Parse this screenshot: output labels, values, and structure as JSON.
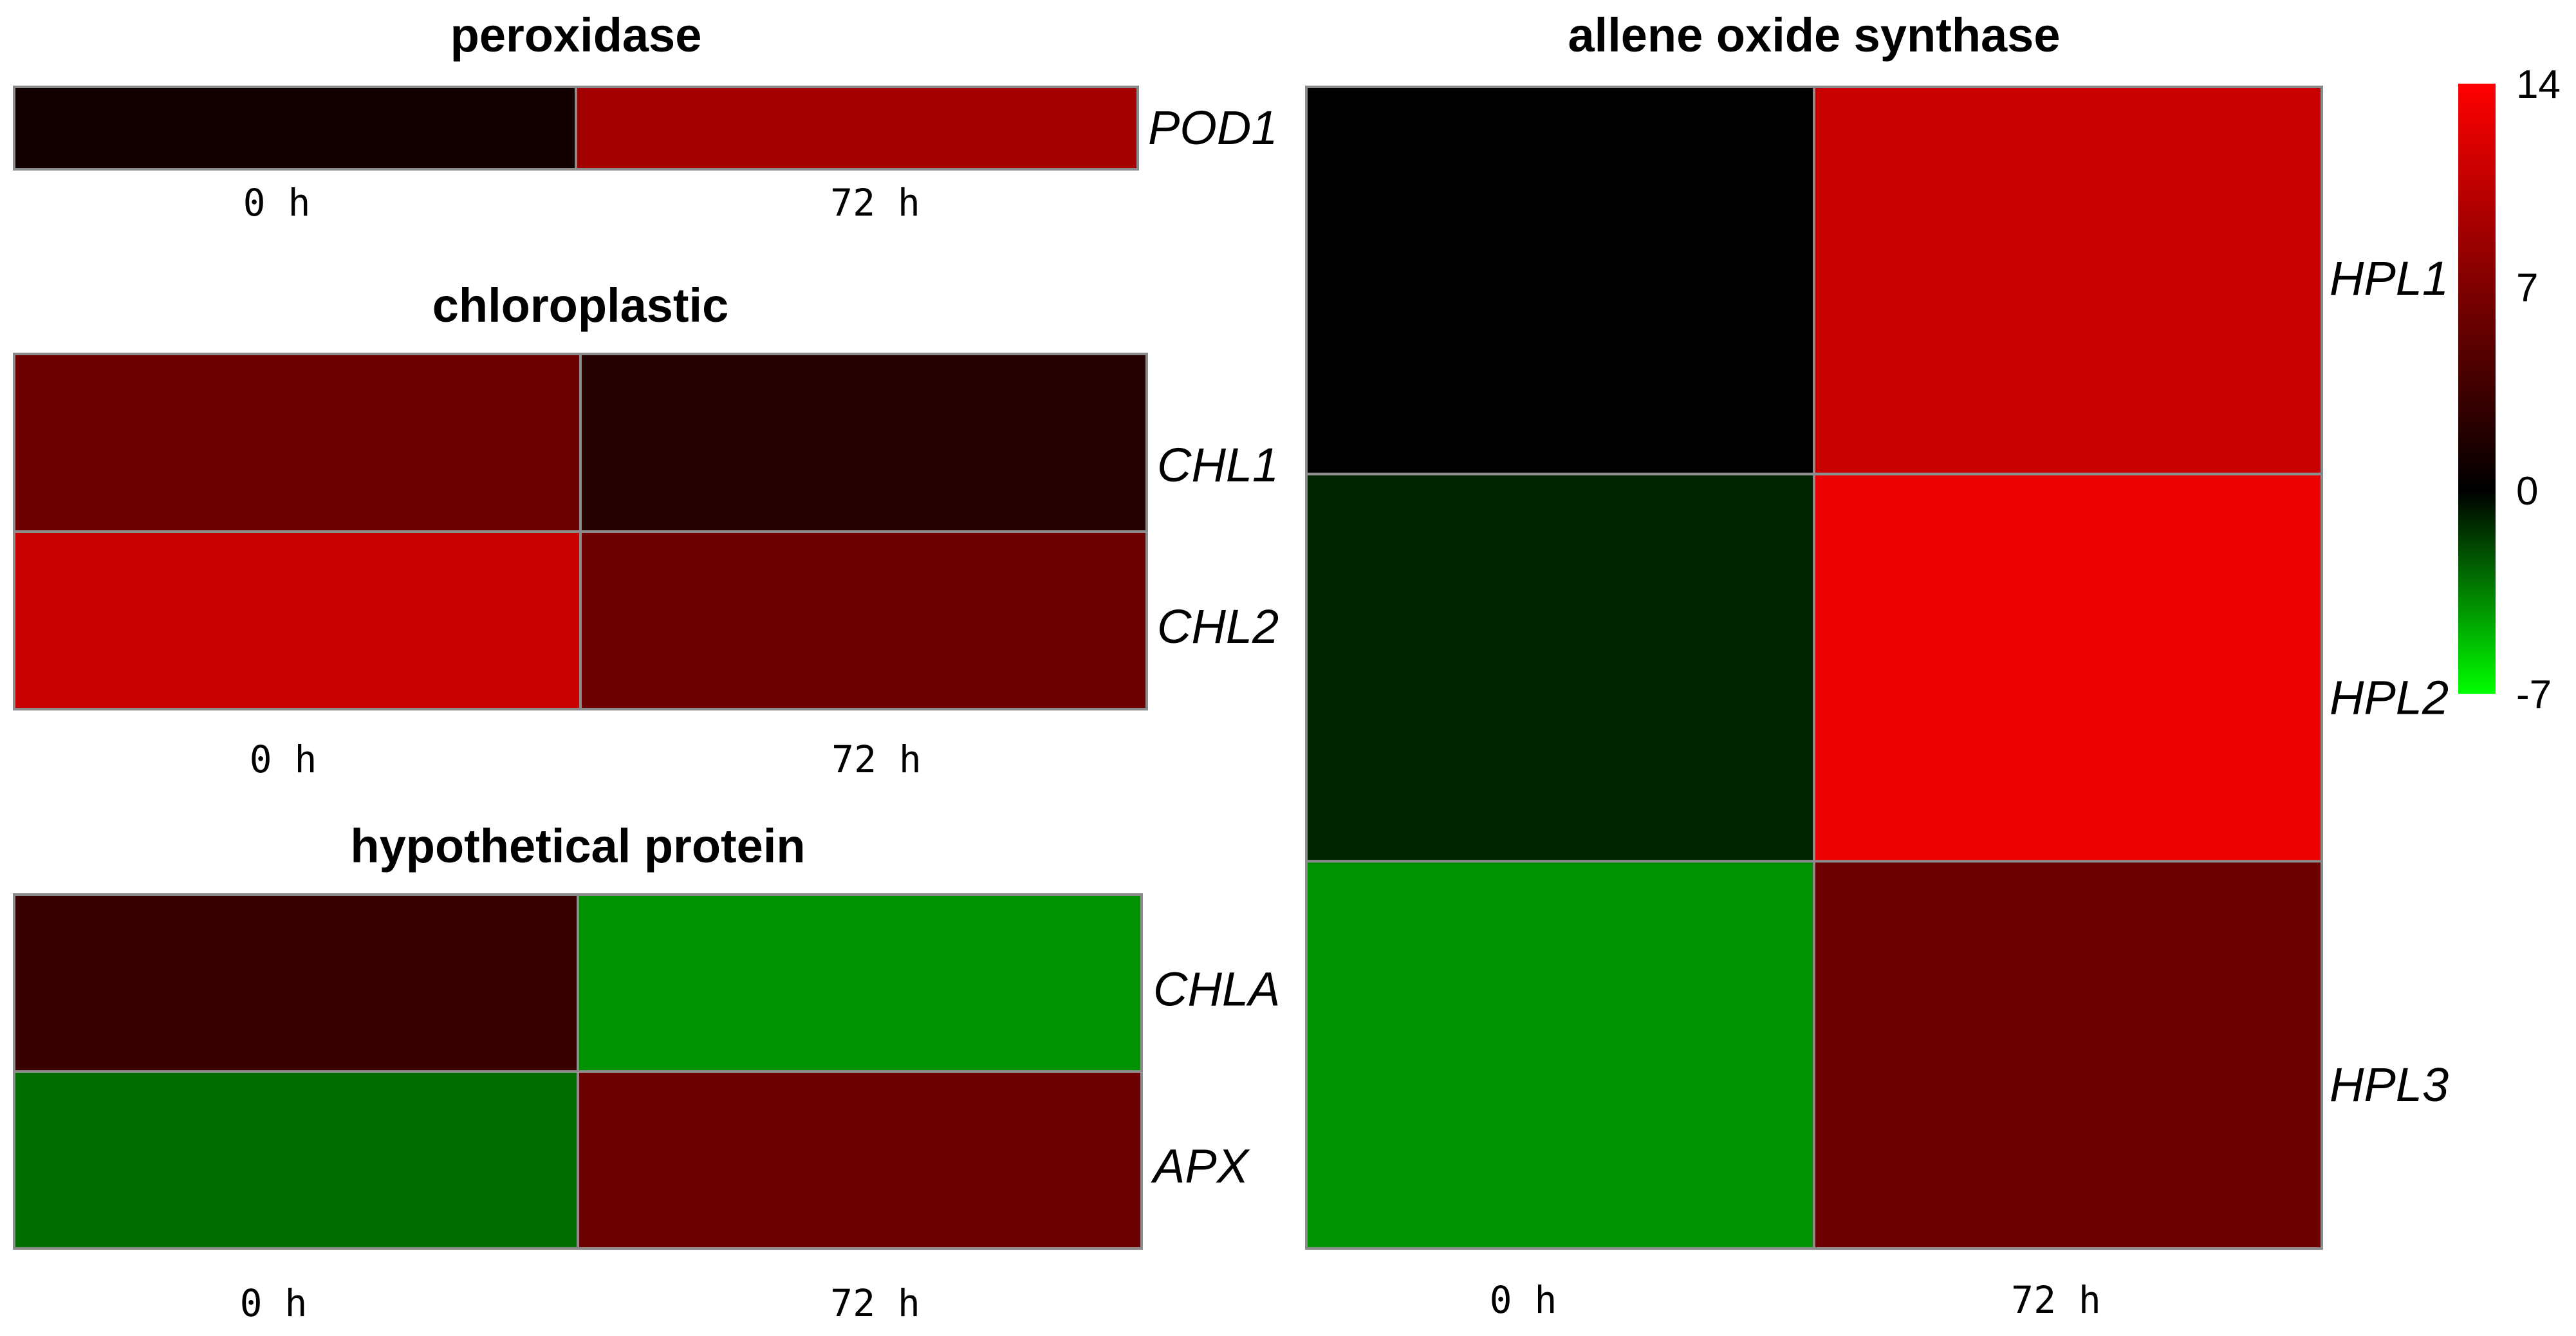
{
  "colors": {
    "background": "#ffffff",
    "cell_border": "#8c8c8c",
    "scale_high": "#ff0000",
    "scale_zero": "#000000",
    "scale_low": "#00ff00"
  },
  "chart_data": [
    {
      "type": "heatmap",
      "title": "peroxidase",
      "columns": [
        "0  h",
        "72  h"
      ],
      "rows": [
        "POD1"
      ],
      "values": [
        [
          1,
          9
        ]
      ],
      "colorbar": "shared",
      "vmin": -7,
      "vmax": 14
    },
    {
      "type": "heatmap",
      "title": "chloroplastic",
      "columns": [
        "0  h",
        "72  h"
      ],
      "rows": [
        "CHL1",
        "CHL2"
      ],
      "values": [
        [
          6,
          2
        ],
        [
          11,
          6
        ]
      ],
      "colorbar": "shared",
      "vmin": -7,
      "vmax": 14
    },
    {
      "type": "heatmap",
      "title": "hypothetical protein",
      "columns": [
        "0  h",
        "72  h"
      ],
      "rows": [
        "CHLA",
        "APX"
      ],
      "values": [
        [
          3,
          -4
        ],
        [
          -3,
          6
        ]
      ],
      "colorbar": "shared",
      "vmin": -7,
      "vmax": 14
    },
    {
      "type": "heatmap",
      "title": "allene oxide synthase",
      "columns": [
        "0  h",
        "72  h"
      ],
      "rows": [
        "HPL1",
        "HPL2",
        "HPL3"
      ],
      "values": [
        [
          0,
          11
        ],
        [
          -1,
          13
        ],
        [
          -4,
          6
        ]
      ],
      "colorbar": "shared",
      "vmin": -7,
      "vmax": 14
    }
  ],
  "colorbar": {
    "ticks": [
      "14",
      "7",
      "0",
      "-7"
    ],
    "tick_values": [
      14,
      7,
      0,
      -7
    ],
    "min": -7,
    "max": 14
  }
}
